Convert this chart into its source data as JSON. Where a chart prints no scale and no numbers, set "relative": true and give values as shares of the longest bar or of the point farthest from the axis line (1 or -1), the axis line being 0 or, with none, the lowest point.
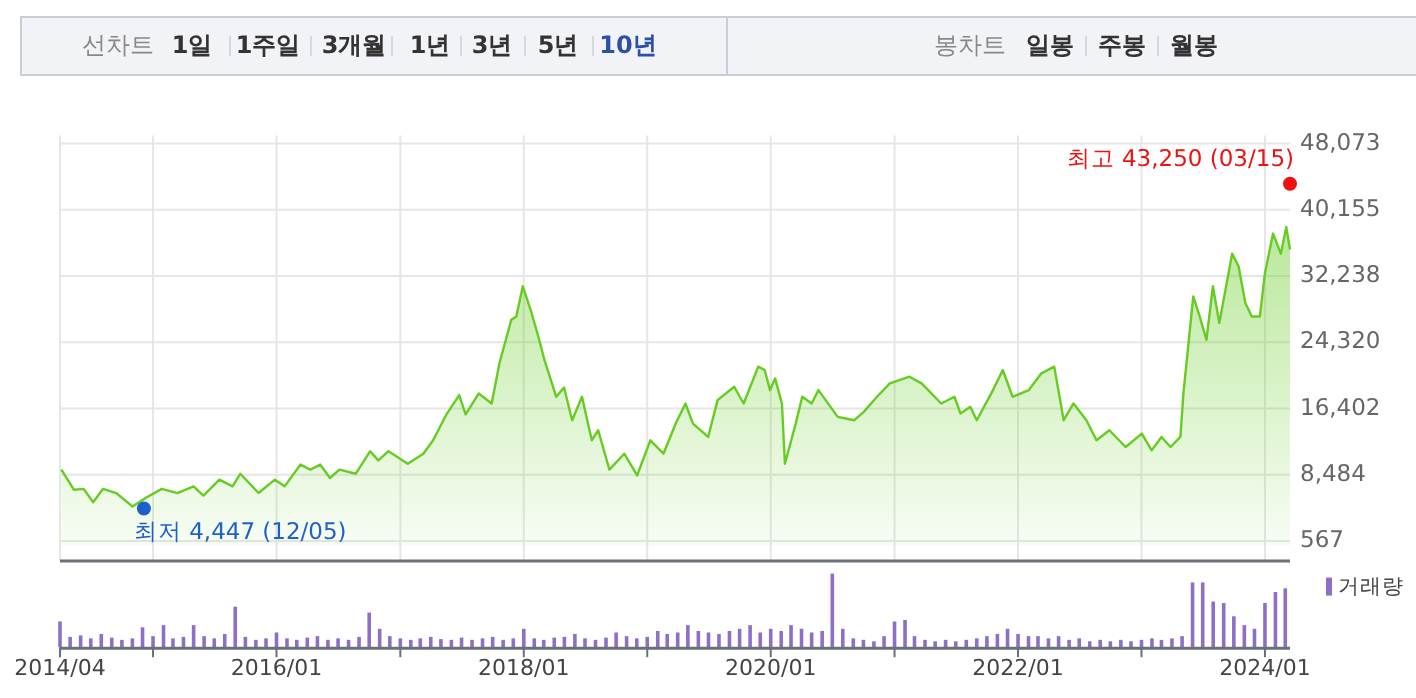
{
  "chart_data": [
    {
      "type": "other",
      "annotations": [
        "선차트",
        "1일",
        "1주일",
        "3개월",
        "1년",
        "3년",
        "5년",
        "10년",
        "봉차트",
        "일봉",
        "주봉",
        "월봉"
      ],
      "colors": [
        "#888888",
        "#333333",
        "#333333",
        "#333333",
        "#333333",
        "#333333",
        "#333333",
        "#2c4fa8",
        "#888888",
        "#333333",
        "#333333",
        "#333333"
      ]
    },
    {
      "type": "area",
      "x": [
        "2014-04-05",
        "2014-05-12",
        "2014-06-10",
        "2014-07-08",
        "2014-08-06",
        "2014-09-14",
        "2014-11-01",
        "2014-12-10",
        "2015-01-27",
        "2015-03-14",
        "2015-05-01",
        "2015-05-30",
        "2015-07-16",
        "2015-08-24",
        "2015-09-16",
        "2015-11-09",
        "2015-12-27",
        "2016-01-25",
        "2016-03-12",
        "2016-04-10",
        "2016-05-09",
        "2016-06-07",
        "2016-07-05",
        "2016-08-22",
        "2016-10-04",
        "2016-10-28",
        "2016-11-27",
        "2017-01-23",
        "2017-03-10",
        "2017-04-08",
        "2017-05-16",
        "2017-06-24",
        "2017-07-13",
        "2017-08-21",
        "2017-09-28",
        "2017-10-21",
        "2017-11-25",
        "2017-12-10",
        "2017-12-29",
        "2018-01-21",
        "2018-02-13",
        "2018-03-03",
        "2018-04-07",
        "2018-04-30",
        "2018-05-24",
        "2018-06-22",
        "2018-07-21",
        "2018-08-09",
        "2018-09-11",
        "2018-10-25",
        "2018-12-02",
        "2019-01-10",
        "2019-02-18",
        "2019-03-26",
        "2019-04-24",
        "2019-05-16",
        "2019-06-30",
        "2019-07-28",
        "2019-09-15",
        "2019-10-13",
        "2019-11-25",
        "2019-12-14",
        "2019-12-30",
        "2020-01-14",
        "2020-02-03",
        "2020-02-12",
        "2020-03-15",
        "2020-04-03",
        "2020-05-01",
        "2020-05-21",
        "2020-07-17",
        "2020-09-04",
        "2020-10-02",
        "2020-11-10",
        "2020-12-18",
        "2021-02-14",
        "2021-03-22",
        "2021-05-19",
        "2021-06-27",
        "2021-07-15",
        "2021-08-13",
        "2021-09-01",
        "2021-10-19",
        "2021-11-17",
        "2021-12-16",
        "2022-02-02",
        "2022-03-11",
        "2022-04-18",
        "2022-05-16",
        "2022-06-14",
        "2022-07-22",
        "2022-08-21",
        "2022-09-28",
        "2022-11-15",
        "2023-01-02",
        "2023-01-31",
        "2023-03-01",
        "2023-03-28",
        "2023-04-26",
        "2023-05-05",
        "2023-06-03",
        "2023-06-22",
        "2023-07-12",
        "2023-07-31",
        "2023-08-19",
        "2023-09-26",
        "2023-10-15",
        "2023-11-04",
        "2023-11-23",
        "2023-12-17",
        "2024-01-01",
        "2024-01-25",
        "2024-02-17",
        "2024-03-04",
        "2024-03-15"
      ],
      "series": [
        {
          "color": "#66cc22",
          "values": [
            9100,
            6700,
            6800,
            5200,
            6800,
            6300,
            4700,
            5700,
            6800,
            6300,
            7100,
            6000,
            7900,
            7100,
            8600,
            6300,
            7900,
            7100,
            9700,
            9100,
            9700,
            8100,
            9100,
            8600,
            11300,
            10200,
            11300,
            9800,
            11000,
            12600,
            15600,
            18000,
            15700,
            18200,
            17000,
            21800,
            27000,
            27400,
            31000,
            28200,
            25000,
            22200,
            17800,
            18900,
            15000,
            17800,
            12600,
            13800,
            9100,
            11000,
            8400,
            12600,
            11000,
            14600,
            17000,
            14600,
            13000,
            17400,
            19000,
            17000,
            21400,
            21000,
            18600,
            20000,
            17000,
            9800,
            14600,
            17800,
            17000,
            18600,
            15400,
            15000,
            16000,
            17800,
            19400,
            20200,
            19400,
            17000,
            17800,
            15800,
            16600,
            15000,
            18600,
            21000,
            17800,
            18600,
            20600,
            21400,
            15000,
            17000,
            15000,
            12600,
            13800,
            11800,
            13400,
            11400,
            13000,
            11800,
            13000,
            18200,
            29800,
            27400,
            24600,
            31000,
            26600,
            34900,
            33400,
            29000,
            27400,
            27400,
            32600,
            37300,
            34900,
            38100,
            35400
          ]
        }
      ],
      "xlim": [
        "2014-04-01",
        "2024-03-15"
      ],
      "xticks": [
        {
          "value": "2014-04-01",
          "label": null
        },
        {
          "value": "2015-01-01",
          "label": null
        },
        {
          "value": "2016-01-01",
          "label": null
        },
        {
          "value": "2017-01-01",
          "label": null
        },
        {
          "value": "2018-01-01",
          "label": null
        },
        {
          "value": "2019-01-01",
          "label": null
        },
        {
          "value": "2020-01-01",
          "label": null
        },
        {
          "value": "2021-01-01",
          "label": null
        },
        {
          "value": "2022-01-01",
          "label": null
        },
        {
          "value": "2023-01-01",
          "label": null
        },
        {
          "value": "2024-01-01",
          "label": null
        }
      ],
      "ylim": [
        -1700,
        48073
      ],
      "yticks": [
        {
          "value": 567,
          "label": "567"
        },
        {
          "value": 8484,
          "label": "8,484"
        },
        {
          "value": 16402,
          "label": "16,402"
        },
        {
          "value": 24320,
          "label": "24,320"
        },
        {
          "value": 32238,
          "label": "32,238"
        },
        {
          "value": 40155,
          "label": "40,155"
        },
        {
          "value": 48073,
          "label": "48,073"
        }
      ],
      "grid": true,
      "tick_labels": "y",
      "annotations": [
        {
          "text": "최고 43,250 (03/15)",
          "x": "2024-03-15",
          "y": 43250
        },
        {
          "text": "최저 4,447 (12/05)",
          "x": "2014-12-05",
          "y": 4447
        }
      ]
    },
    {
      "type": "bar",
      "relative": true,
      "legend": "top right",
      "tick_labels": "x",
      "x": [
        "2014-04",
        "2014-05",
        "2014-06",
        "2014-07",
        "2014-08",
        "2014-09",
        "2014-10",
        "2014-11",
        "2014-12",
        "2015-01",
        "2015-02",
        "2015-03",
        "2015-04",
        "2015-05",
        "2015-06",
        "2015-07",
        "2015-08",
        "2015-09",
        "2015-10",
        "2015-11",
        "2015-12",
        "2016-01",
        "2016-02",
        "2016-03",
        "2016-04",
        "2016-05",
        "2016-06",
        "2016-07",
        "2016-08",
        "2016-09",
        "2016-10",
        "2016-11",
        "2016-12",
        "2017-01",
        "2017-02",
        "2017-03",
        "2017-04",
        "2017-05",
        "2017-06",
        "2017-07",
        "2017-08",
        "2017-09",
        "2017-10",
        "2017-11",
        "2017-12",
        "2018-01",
        "2018-02",
        "2018-03",
        "2018-04",
        "2018-05",
        "2018-06",
        "2018-07",
        "2018-08",
        "2018-09",
        "2018-10",
        "2018-11",
        "2018-12",
        "2019-01",
        "2019-02",
        "2019-03",
        "2019-04",
        "2019-05",
        "2019-06",
        "2019-07",
        "2019-08",
        "2019-09",
        "2019-10",
        "2019-11",
        "2019-12",
        "2020-01",
        "2020-02",
        "2020-03",
        "2020-04",
        "2020-05",
        "2020-06",
        "2020-07",
        "2020-08",
        "2020-09",
        "2020-10",
        "2020-11",
        "2020-12",
        "2021-01",
        "2021-02",
        "2021-03",
        "2021-04",
        "2021-05",
        "2021-06",
        "2021-07",
        "2021-08",
        "2021-09",
        "2021-10",
        "2021-11",
        "2021-12",
        "2022-01",
        "2022-02",
        "2022-03",
        "2022-04",
        "2022-05",
        "2022-06",
        "2022-07",
        "2022-08",
        "2022-09",
        "2022-10",
        "2022-11",
        "2022-12",
        "2023-01",
        "2023-02",
        "2023-03",
        "2023-04",
        "2023-05",
        "2023-06",
        "2023-07",
        "2023-08",
        "2023-09",
        "2023-10",
        "2023-11",
        "2023-12",
        "2024-01",
        "2024-02",
        "2024-03"
      ],
      "series": [
        {
          "name": "거래량",
          "color": "#8e6fc8",
          "values": [
            0.35,
            0.14,
            0.16,
            0.12,
            0.18,
            0.13,
            0.1,
            0.12,
            0.27,
            0.15,
            0.3,
            0.12,
            0.14,
            0.3,
            0.15,
            0.12,
            0.18,
            0.55,
            0.14,
            0.1,
            0.12,
            0.2,
            0.12,
            0.1,
            0.13,
            0.15,
            0.1,
            0.12,
            0.1,
            0.14,
            0.47,
            0.25,
            0.15,
            0.12,
            0.1,
            0.12,
            0.14,
            0.11,
            0.1,
            0.13,
            0.1,
            0.12,
            0.14,
            0.1,
            0.12,
            0.25,
            0.12,
            0.1,
            0.13,
            0.14,
            0.18,
            0.12,
            0.1,
            0.13,
            0.2,
            0.15,
            0.12,
            0.14,
            0.22,
            0.18,
            0.2,
            0.3,
            0.22,
            0.2,
            0.18,
            0.22,
            0.25,
            0.3,
            0.2,
            0.25,
            0.22,
            0.3,
            0.25,
            0.2,
            0.22,
            1.0,
            0.25,
            0.12,
            0.1,
            0.08,
            0.15,
            0.35,
            0.37,
            0.15,
            0.1,
            0.08,
            0.1,
            0.08,
            0.1,
            0.12,
            0.15,
            0.18,
            0.25,
            0.18,
            0.15,
            0.15,
            0.12,
            0.15,
            0.1,
            0.12,
            0.08,
            0.1,
            0.08,
            0.1,
            0.08,
            0.1,
            0.12,
            0.1,
            0.12,
            0.15,
            0.88,
            0.88,
            0.62,
            0.6,
            0.42,
            0.3,
            0.25,
            0.6,
            0.75,
            0.8
          ]
        }
      ],
      "xlim": [
        "2014-04-01",
        "2024-03-15"
      ],
      "xticks": [
        {
          "value": "2014-04-01",
          "label": "2014/04"
        },
        {
          "value": "2015-01-01",
          "label": null
        },
        {
          "value": "2016-01-01",
          "label": "2016/01"
        },
        {
          "value": "2017-01-01",
          "label": null
        },
        {
          "value": "2018-01-01",
          "label": "2018/01"
        },
        {
          "value": "2019-01-01",
          "label": null
        },
        {
          "value": "2020-01-01",
          "label": "2020/01"
        },
        {
          "value": "2021-01-01",
          "label": null
        },
        {
          "value": "2022-01-01",
          "label": "2022/01"
        },
        {
          "value": "2023-01-01",
          "label": null
        },
        {
          "value": "2024-01-01",
          "label": "2024/01"
        }
      ]
    }
  ]
}
